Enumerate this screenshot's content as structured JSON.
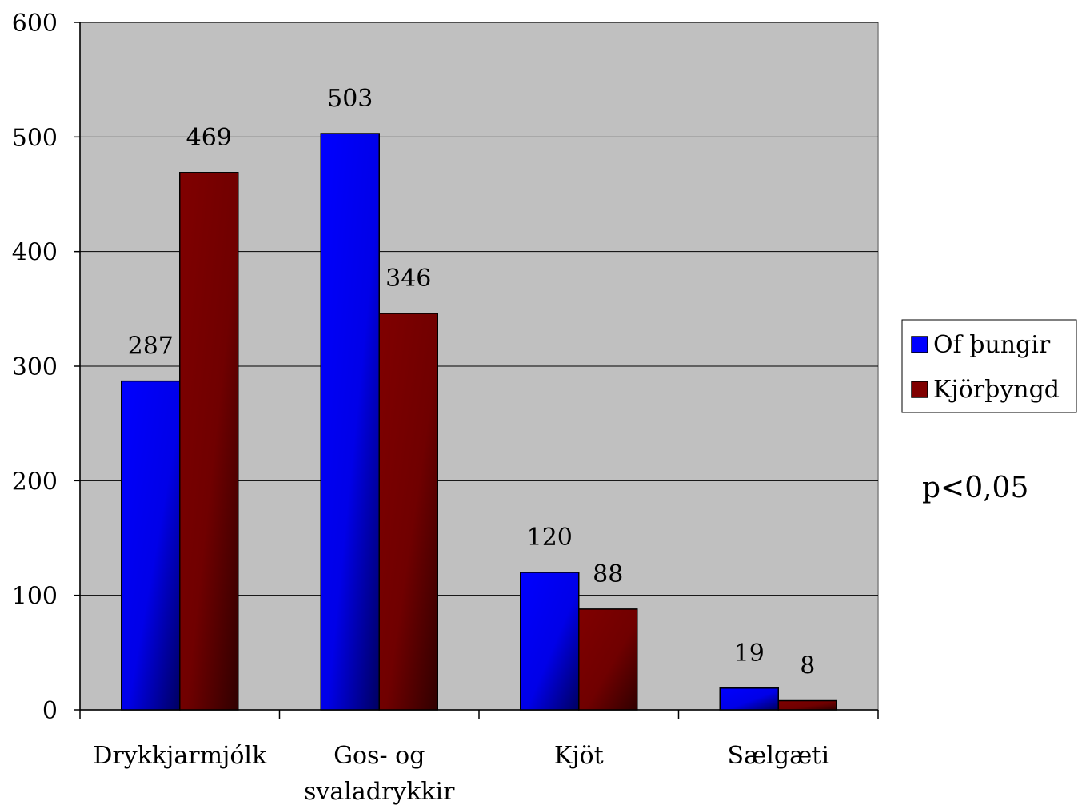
{
  "chart_data": {
    "type": "bar",
    "categories": [
      [
        "Drykkjarmjólk"
      ],
      [
        "Gos- og",
        "svaladrykkir"
      ],
      [
        "Kjöt"
      ],
      [
        "Sælgæti"
      ]
    ],
    "series": [
      {
        "name": "Of þungir",
        "values": [
          287,
          503,
          120,
          19
        ],
        "color": "#0000ff"
      },
      {
        "name": "Kjörþyngd",
        "values": [
          469,
          346,
          88,
          8
        ],
        "color": "#800000"
      }
    ],
    "ylim": [
      0,
      600
    ],
    "yticks": [
      "0",
      "100",
      "200",
      "300",
      "400",
      "500",
      "600"
    ],
    "grid": true,
    "legend_position": "right",
    "plot_background": "#c0c0c0",
    "annotation": "p<0,05"
  }
}
